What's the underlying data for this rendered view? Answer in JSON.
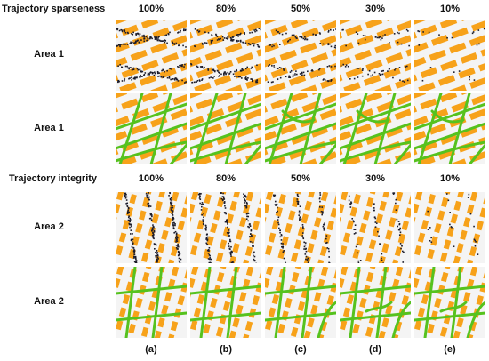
{
  "sections": [
    {
      "title": "Trajectory sparseness",
      "percentages": [
        "100%",
        "80%",
        "50%",
        "30%",
        "10%"
      ],
      "rows": [
        {
          "label": "Area 1",
          "kind": "points"
        },
        {
          "label": "Area 1",
          "kind": "roads"
        }
      ]
    },
    {
      "title": "Trajectory integrity",
      "percentages": [
        "100%",
        "80%",
        "50%",
        "30%",
        "10%"
      ],
      "rows": [
        {
          "label": "Area 2",
          "kind": "points"
        },
        {
          "label": "Area 2",
          "kind": "roads"
        }
      ]
    }
  ],
  "captions": [
    "(a)",
    "(b)",
    "(c)",
    "(d)",
    "(e)"
  ],
  "colors": {
    "building": "#f7a21a",
    "road": "#56c21e",
    "trajectory": "#1b1b2a",
    "background": "#f4f4f4"
  }
}
